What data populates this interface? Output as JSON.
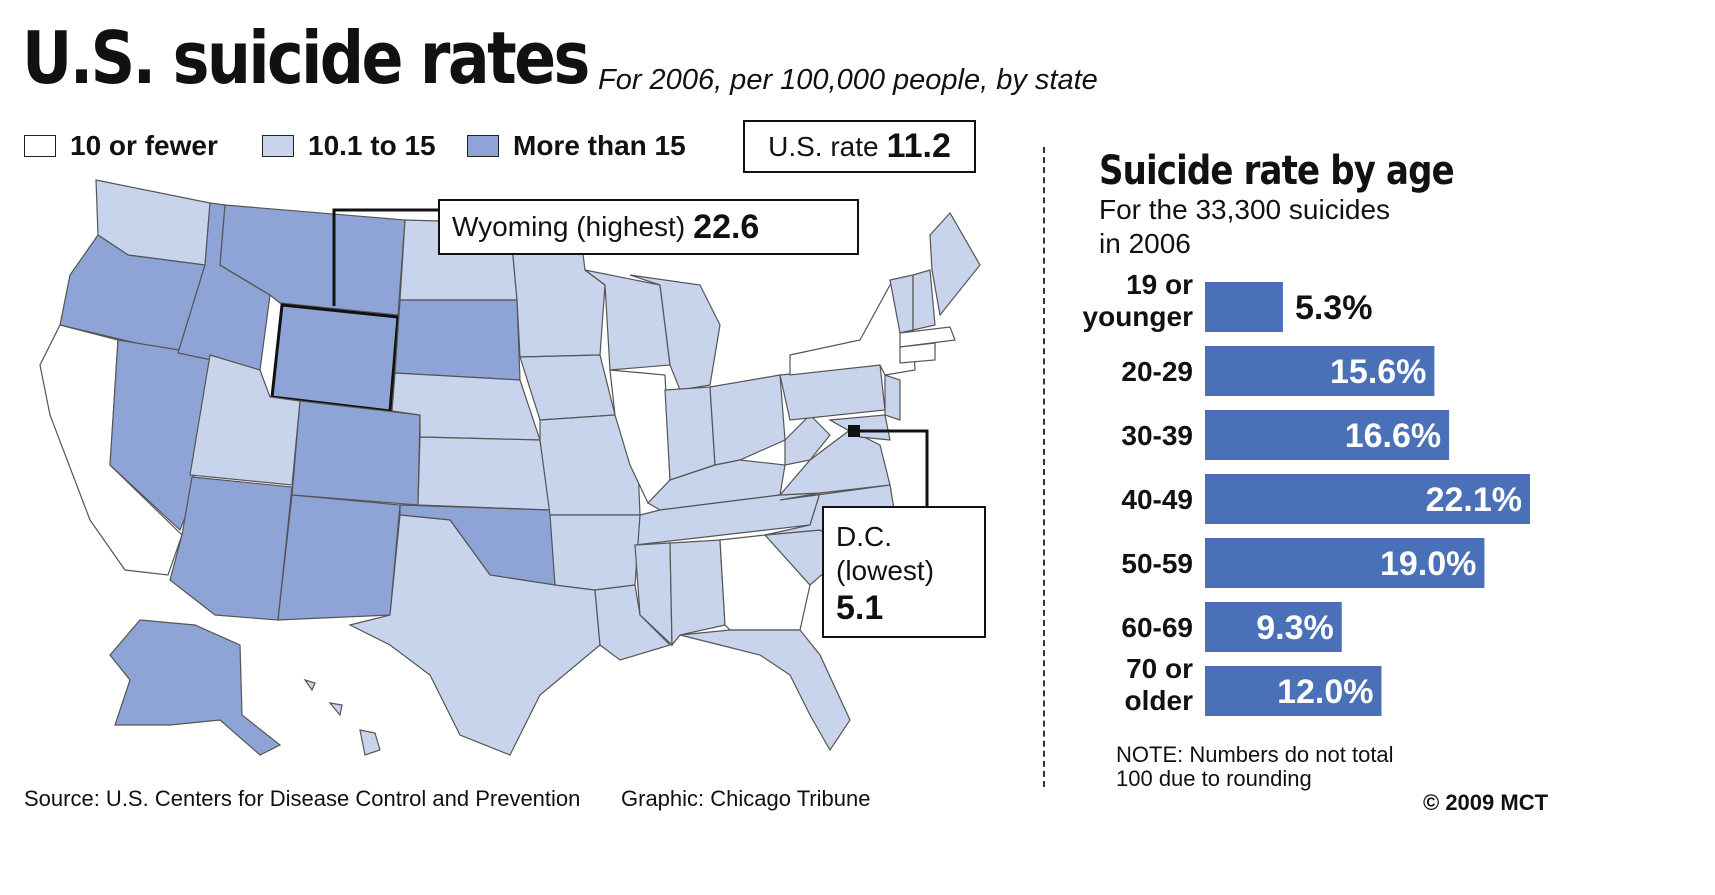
{
  "header": {
    "title": "U.S. suicide rates",
    "subtitle": "For 2006, per 100,000 people, by state"
  },
  "legend": {
    "items": [
      {
        "label": "10 or fewer",
        "color": "#ffffff"
      },
      {
        "label": "10.1 to 15",
        "color": "#c8d3ec"
      },
      {
        "label": "More than 15",
        "color": "#8ea4d6"
      }
    ]
  },
  "us_rate": {
    "label": "U.S. rate",
    "value": "11.2"
  },
  "callouts": {
    "highest": {
      "label": "Wyoming (highest)",
      "value": "22.6"
    },
    "lowest": {
      "name": "D.C.",
      "note": "(lowest)",
      "value": "5.1"
    }
  },
  "age_panel": {
    "title": "Suicide rate by age",
    "subtitle_line1": "For the 33,300 suicides",
    "subtitle_line2": "in 2006",
    "note_line1": "NOTE: Numbers do not total",
    "note_line2": "100 due to rounding"
  },
  "chart_data": {
    "type": "bar",
    "orientation": "horizontal",
    "title": "Suicide rate by age",
    "categories": [
      [
        "19 or",
        "younger"
      ],
      [
        "20-29"
      ],
      [
        "30-39"
      ],
      [
        "40-49"
      ],
      [
        "50-59"
      ],
      [
        "60-69"
      ],
      [
        "70 or",
        "older"
      ]
    ],
    "values": [
      5.3,
      15.6,
      16.6,
      22.1,
      19.0,
      9.3,
      12.0
    ],
    "labels": [
      "5.3%",
      "15.6%",
      "16.6%",
      "22.1%",
      "19.0%",
      "9.3%",
      "12.0%"
    ],
    "unit": "%",
    "bar_color": "#4a70b8"
  },
  "footer": {
    "source": "Source: U.S. Centers for Disease Control and Prevention",
    "credit": "Graphic: Chicago Tribune",
    "copyright": "© 2009 MCT"
  }
}
